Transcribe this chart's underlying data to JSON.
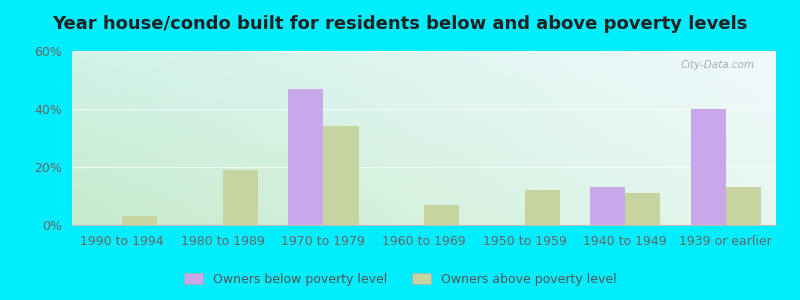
{
  "title": "Year house/condo built for residents below and above poverty levels",
  "categories": [
    "1990 to 1994",
    "1980 to 1989",
    "1970 to 1979",
    "1960 to 1969",
    "1950 to 1959",
    "1940 to 1949",
    "1939 or earlier"
  ],
  "below_poverty": [
    0,
    0,
    47,
    0,
    0,
    13,
    40
  ],
  "above_poverty": [
    3,
    19,
    34,
    7,
    12,
    11,
    13
  ],
  "below_color": "#c8a8e8",
  "above_color": "#c8d4a0",
  "outer_bg": "#00eeff",
  "plot_bg_topleft": "#d0f0e8",
  "plot_bg_topright": "#f0fafc",
  "plot_bg_bottomleft": "#c8e8c8",
  "plot_bg_bottomright": "#e8f8f0",
  "ylim": [
    0,
    60
  ],
  "yticks": [
    0,
    20,
    40,
    60
  ],
  "ytick_labels": [
    "0%",
    "20%",
    "40%",
    "60%"
  ],
  "legend_below": "Owners below poverty level",
  "legend_above": "Owners above poverty level",
  "bar_width": 0.35,
  "title_fontsize": 13,
  "tick_fontsize": 9,
  "legend_fontsize": 9,
  "watermark": "City-Data.com"
}
